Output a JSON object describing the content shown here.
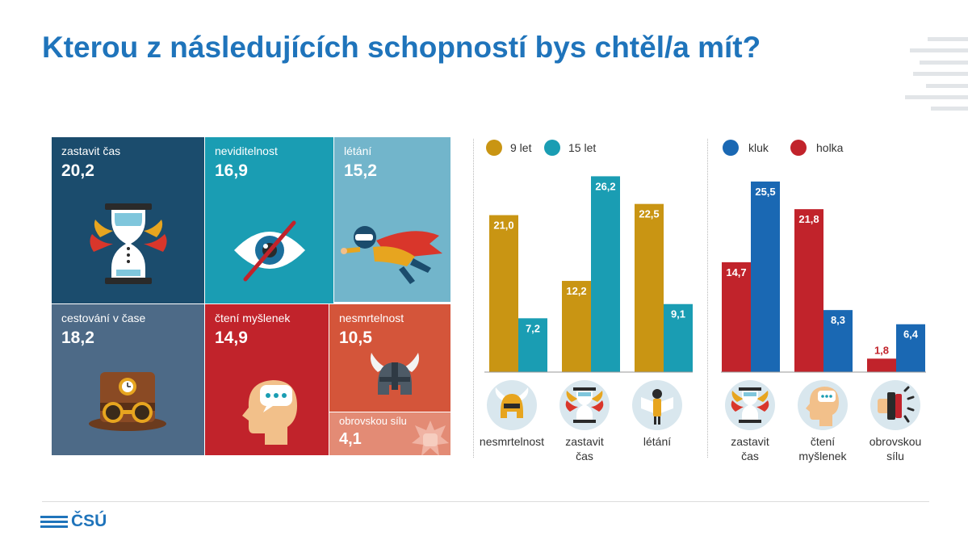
{
  "title": "Kterou z následujících schopností bys chtěl/a mít?",
  "logo": "ČSÚ",
  "colors": {
    "title": "#1f74bb",
    "age9": "#c99513",
    "age15": "#1a9db3",
    "boy": "#1a68b3",
    "girl": "#c1232b"
  },
  "treemap": [
    {
      "label": "zastavit čas",
      "value": "20,2",
      "color": "#1b4c6d",
      "icon": "hourglass-icon"
    },
    {
      "label": "neviditelnost",
      "value": "16,9",
      "color": "#1a9db3",
      "icon": "crossed-eye-icon"
    },
    {
      "label": "létání",
      "value": "15,2",
      "color": "#72b5cb",
      "icon": "flying-hero-icon"
    },
    {
      "label": "cestování v čase",
      "value": "18,2",
      "color": "#4d6a87",
      "icon": "steampunk-hat-icon"
    },
    {
      "label": "čtení myšlenek",
      "value": "14,9",
      "color": "#c1232b",
      "icon": "mind-reading-head-icon"
    },
    {
      "label": "nesmrtelnost",
      "value": "10,5",
      "color": "#d4553a",
      "icon": "viking-helmet-icon"
    },
    {
      "label": "obrovskou sílu",
      "value": "4,1",
      "color": "#e38b75",
      "icon": "punch-burst-icon"
    }
  ],
  "chart_data": [
    {
      "type": "bar",
      "legend": [
        "9 let",
        "15 let"
      ],
      "categories": [
        "nesmrtelnost",
        "zastavit čas",
        "létání"
      ],
      "category_labels": [
        [
          "nesmrtelnost"
        ],
        [
          "zastavit",
          "čas"
        ],
        [
          "létání"
        ]
      ],
      "series": [
        {
          "name": "9 let",
          "values": [
            21.0,
            12.2,
            22.5
          ],
          "labels": [
            "21,0",
            "12,2",
            "22,5"
          ]
        },
        {
          "name": "15 let",
          "values": [
            7.2,
            26.2,
            9.1
          ],
          "labels": [
            "7,2",
            "26,2",
            "9,1"
          ]
        }
      ],
      "ylim": [
        0,
        27
      ]
    },
    {
      "type": "bar",
      "legend": [
        "kluk",
        "holka"
      ],
      "categories": [
        "zastavit čas",
        "čtení myšlenek",
        "obrovskou sílu"
      ],
      "category_labels": [
        [
          "zastavit",
          "čas"
        ],
        [
          "čtení",
          "myšlenek"
        ],
        [
          "obrovskou",
          "sílu"
        ]
      ],
      "series": [
        {
          "name": "holka",
          "values": [
            14.7,
            21.8,
            1.8
          ],
          "labels": [
            "14,7",
            "21,8",
            "1,8"
          ]
        },
        {
          "name": "kluk",
          "values": [
            25.5,
            8.3,
            6.4
          ],
          "labels": [
            "25,5",
            "8,3",
            "6,4"
          ]
        }
      ],
      "ylim": [
        0,
        27
      ]
    }
  ]
}
